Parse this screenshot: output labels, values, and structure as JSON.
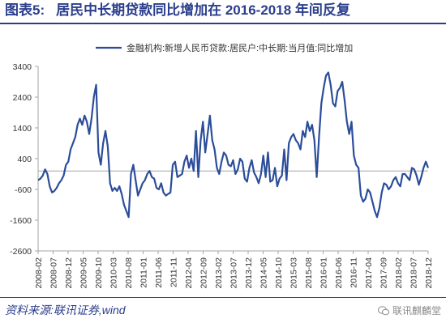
{
  "header": {
    "figure_label": "图表5:",
    "title": "居民中长期贷款同比增加在 2016-2018 年间反复"
  },
  "footer": {
    "source": "资料来源:联讯证券,wind",
    "watermark": "联讯麒麟堂"
  },
  "colors": {
    "title": "#2b3e8c",
    "line": "#2b4d9a",
    "axis": "#a6a6a6",
    "tick_text": "#333333"
  },
  "chart_data": {
    "type": "line",
    "legend_position": "top-center",
    "grid": false,
    "ylim": [
      -2600,
      3400
    ],
    "yticks": [
      3400,
      2400,
      1400,
      400,
      -600,
      -1600,
      -2600
    ],
    "x_tick_labels": [
      "2008-02",
      "2008-07",
      "2008-12",
      "2009-05",
      "2009-10",
      "2010-03",
      "2010-08",
      "2011-01",
      "2011-06",
      "2011-11",
      "2012-04",
      "2012-09",
      "2013-02",
      "2013-07",
      "2013-12",
      "2014-05",
      "2014-10",
      "2015-03",
      "2015-08",
      "2016-01",
      "2016-06",
      "2016-11",
      "2017-04",
      "2017-09",
      "2018-02",
      "2018-07",
      "2018-12"
    ],
    "series": [
      {
        "name": "金融机构:新增人民币贷款:居民户:中长期:当月值:同比增加",
        "start": "2008-02",
        "end": "2018-12",
        "values": [
          -300,
          -250,
          -150,
          50,
          -100,
          -500,
          -700,
          -650,
          -550,
          -400,
          -300,
          -150,
          200,
          300,
          700,
          900,
          1100,
          1500,
          1700,
          1500,
          1800,
          1600,
          1200,
          1700,
          2400,
          2800,
          600,
          200,
          900,
          1300,
          800,
          -400,
          -650,
          -550,
          -650,
          -500,
          -750,
          -1100,
          -1300,
          -1500,
          -100,
          200,
          -300,
          -800,
          -600,
          -400,
          -300,
          -100,
          0,
          -200,
          -250,
          -550,
          -600,
          -400,
          -700,
          -800,
          -750,
          -700,
          200,
          300,
          -200,
          -150,
          -100,
          300,
          500,
          100,
          400,
          0,
          1300,
          -200,
          1000,
          1600,
          600,
          1200,
          1800,
          1000,
          700,
          100,
          -100,
          300,
          600,
          500,
          200,
          150,
          350,
          -100,
          50,
          400,
          300,
          -250,
          -350,
          100,
          350,
          -50,
          -200,
          -400,
          -100,
          500,
          -200,
          600,
          -350,
          -300,
          100,
          -500,
          -250,
          -150,
          700,
          -300,
          900,
          1100,
          1200,
          1000,
          900,
          700,
          1300,
          1100,
          1600,
          1300,
          1500,
          1000,
          -200,
          1100,
          2200,
          2700,
          3100,
          3200,
          2800,
          2200,
          2100,
          2600,
          2700,
          2900,
          2300,
          1600,
          1200,
          1600,
          500,
          200,
          100,
          -800,
          -1000,
          -900,
          -600,
          -700,
          -1000,
          -1300,
          -1500,
          -1200,
          -700,
          -400,
          -450,
          -600,
          -500,
          -300,
          -200,
          -400,
          -500,
          -100,
          -100,
          -200,
          -300,
          100,
          50,
          -150,
          -450,
          -200,
          100,
          300,
          100
        ]
      }
    ]
  }
}
